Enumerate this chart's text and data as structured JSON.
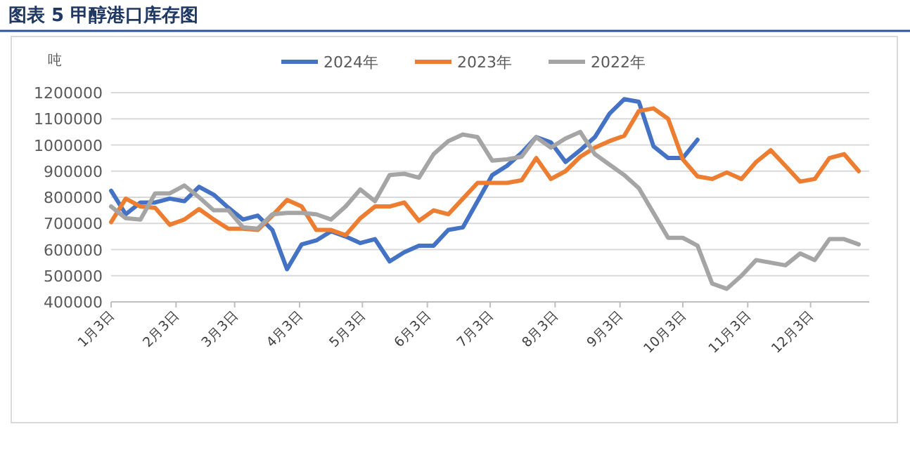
{
  "chart_data": {
    "type": "line",
    "title": "图表 5 甲醇港口库存图",
    "ylabel": "吨",
    "x": [
      "--01-03",
      "--01-10",
      "--01-17",
      "--01-24",
      "--01-31",
      "--02-07",
      "--02-14",
      "--02-21",
      "--02-28",
      "--03-07",
      "--03-14",
      "--03-21",
      "--03-28",
      "--04-04",
      "--04-11",
      "--04-18",
      "--04-25",
      "--05-02",
      "--05-09",
      "--05-16",
      "--05-23",
      "--05-30",
      "--06-06",
      "--06-13",
      "--06-20",
      "--06-27",
      "--07-04",
      "--07-11",
      "--07-18",
      "--07-25",
      "--08-01",
      "--08-08",
      "--08-15",
      "--08-22",
      "--08-29",
      "--09-05",
      "--09-12",
      "--09-19",
      "--09-26",
      "--10-03",
      "--10-10",
      "--10-17",
      "--10-24",
      "--10-31",
      "--11-07",
      "--11-14",
      "--11-21",
      "--11-28",
      "--12-05",
      "--12-12",
      "--12-19",
      "--12-26"
    ],
    "series": [
      {
        "name": "2024年",
        "color": "#4472c4",
        "values": [
          825000,
          735000,
          780000,
          780000,
          795000,
          785000,
          840000,
          810000,
          760000,
          715000,
          730000,
          675000,
          525000,
          620000,
          635000,
          670000,
          650000,
          625000,
          640000,
          555000,
          590000,
          615000,
          615000,
          675000,
          685000,
          785000,
          885000,
          920000,
          970000,
          1030000,
          1010000,
          935000,
          980000,
          1030000,
          1120000,
          1175000,
          1165000,
          995000,
          950000,
          950000,
          1020000,
          null,
          null,
          null,
          null,
          null,
          null,
          null,
          null,
          null,
          null,
          null
        ]
      },
      {
        "name": "2023年",
        "color": "#ed7d31",
        "values": [
          705000,
          795000,
          765000,
          760000,
          695000,
          715000,
          755000,
          715000,
          680000,
          680000,
          675000,
          730000,
          790000,
          765000,
          675000,
          675000,
          655000,
          720000,
          765000,
          765000,
          780000,
          710000,
          750000,
          735000,
          795000,
          855000,
          855000,
          855000,
          865000,
          950000,
          870000,
          900000,
          955000,
          990000,
          1015000,
          1035000,
          1130000,
          1140000,
          1100000,
          945000,
          880000,
          870000,
          895000,
          870000,
          935000,
          980000,
          920000,
          860000,
          870000,
          950000,
          965000,
          900000
        ]
      },
      {
        "name": "2022年",
        "color": "#a5a5a5",
        "values": [
          765000,
          720000,
          715000,
          815000,
          815000,
          845000,
          800000,
          750000,
          750000,
          685000,
          680000,
          735000,
          740000,
          740000,
          735000,
          715000,
          765000,
          830000,
          785000,
          885000,
          890000,
          875000,
          965000,
          1015000,
          1040000,
          1030000,
          940000,
          945000,
          955000,
          1030000,
          990000,
          1025000,
          1050000,
          965000,
          925000,
          885000,
          835000,
          740000,
          645000,
          645000,
          615000,
          470000,
          450000,
          500000,
          560000,
          550000,
          540000,
          585000,
          560000,
          640000,
          640000,
          620000
        ]
      }
    ],
    "xlim": [
      "--01-03",
      "--12-31"
    ],
    "xticks": [
      {
        "value": "--01-03",
        "label": "1月3日"
      },
      {
        "value": "--02-03",
        "label": "2月3日"
      },
      {
        "value": "--03-03",
        "label": "3月3日"
      },
      {
        "value": "--04-03",
        "label": "4月3日"
      },
      {
        "value": "--05-03",
        "label": "5月3日"
      },
      {
        "value": "--06-03",
        "label": "6月3日"
      },
      {
        "value": "--07-03",
        "label": "7月3日"
      },
      {
        "value": "--08-03",
        "label": "8月3日"
      },
      {
        "value": "--09-03",
        "label": "9月3日"
      },
      {
        "value": "--10-03",
        "label": "10月3日"
      },
      {
        "value": "--11-03",
        "label": "11月3日"
      },
      {
        "value": "--12-03",
        "label": "12月3日"
      }
    ],
    "ylim": [
      400000,
      1200000
    ],
    "yticks": [
      400000,
      500000,
      600000,
      700000,
      800000,
      900000,
      1000000,
      1100000,
      1200000
    ],
    "grid": "y",
    "legend": "top",
    "line_style": "solid"
  }
}
